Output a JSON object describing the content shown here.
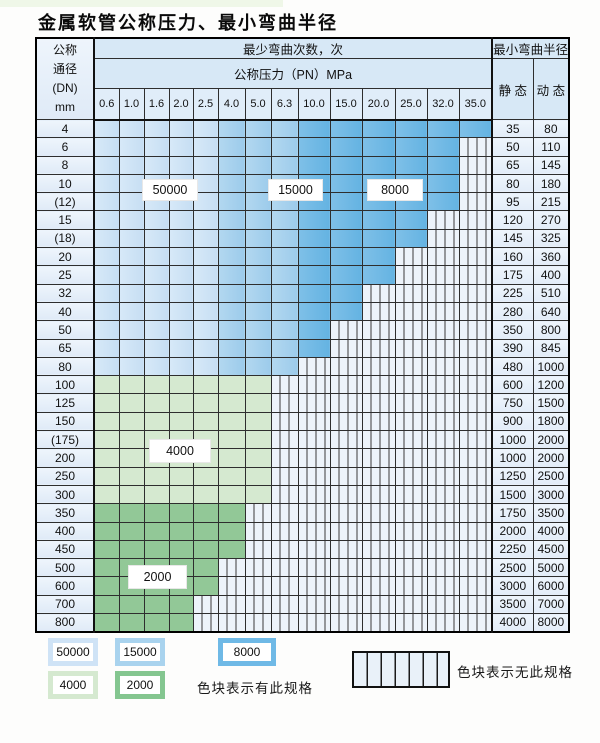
{
  "page": {
    "title": "金属软管公称压力、最小弯曲半径"
  },
  "header": {
    "dn_lines": [
      "公称",
      "通径",
      "(DN)",
      "mm"
    ],
    "cycles_title": "最少弯曲次数，次",
    "pressure_title": "公称压力（PN）MPa",
    "radius_title": "最小弯曲半径",
    "static_label": "静 态",
    "dynamic_label": "动 态",
    "pressures": [
      "0.6",
      "1.0",
      "1.6",
      "2.0",
      "2.5",
      "4.0",
      "5.0",
      "6.3",
      "10.0",
      "15.0",
      "20.0",
      "25.0",
      "32.0",
      "35.0"
    ]
  },
  "cycle_labels": {
    "c50000": "50000",
    "c15000": "15000",
    "c8000": "8000",
    "c4000": "4000",
    "c2000": "2000"
  },
  "legend": {
    "has_spec_note": "色块表示有此规格",
    "no_spec_note": "色块表示无此规格"
  },
  "colors": {
    "c50000": "#cfe3f6",
    "c15000": "#a9d3ee",
    "c8000": "#6fb9e6",
    "c4000": "#d5e9d0",
    "c2000": "#92c897",
    "no_spec_bg": "#edf3fa",
    "header_bg": "#d7e8f6",
    "grid": "#2e2e2e"
  },
  "chart_data": {
    "type": "table",
    "title": "金属软管公称压力、最小弯曲半径",
    "pn_unit": "MPa",
    "radius_columns": [
      "静态",
      "动态"
    ],
    "cycle_zones": [
      {
        "cycles": "50000",
        "from": "0.6",
        "to": "2.5"
      },
      {
        "cycles": "15000",
        "from": "4.0",
        "to": "6.3"
      },
      {
        "cycles": "8000",
        "from": "10.0",
        "to": "35.0"
      }
    ],
    "rows": [
      {
        "dn": "4",
        "cycles_group": "blue",
        "max_pn": "35.0",
        "static": "35",
        "dynamic": "80"
      },
      {
        "dn": "6",
        "cycles_group": "blue",
        "max_pn": "32.0",
        "static": "50",
        "dynamic": "110"
      },
      {
        "dn": "8",
        "cycles_group": "blue",
        "max_pn": "32.0",
        "static": "65",
        "dynamic": "145"
      },
      {
        "dn": "10",
        "cycles_group": "blue",
        "max_pn": "32.0",
        "static": "80",
        "dynamic": "180"
      },
      {
        "dn": "(12)",
        "cycles_group": "blue",
        "max_pn": "32.0",
        "static": "95",
        "dynamic": "215"
      },
      {
        "dn": "15",
        "cycles_group": "blue",
        "max_pn": "25.0",
        "static": "120",
        "dynamic": "270"
      },
      {
        "dn": "(18)",
        "cycles_group": "blue",
        "max_pn": "25.0",
        "static": "145",
        "dynamic": "325"
      },
      {
        "dn": "20",
        "cycles_group": "blue",
        "max_pn": "20.0",
        "static": "160",
        "dynamic": "360"
      },
      {
        "dn": "25",
        "cycles_group": "blue",
        "max_pn": "20.0",
        "static": "175",
        "dynamic": "400"
      },
      {
        "dn": "32",
        "cycles_group": "blue",
        "max_pn": "15.0",
        "static": "225",
        "dynamic": "510"
      },
      {
        "dn": "40",
        "cycles_group": "blue",
        "max_pn": "15.0",
        "static": "280",
        "dynamic": "640"
      },
      {
        "dn": "50",
        "cycles_group": "blue",
        "max_pn": "10.0",
        "static": "350",
        "dynamic": "800"
      },
      {
        "dn": "65",
        "cycles_group": "blue",
        "max_pn": "10.0",
        "static": "390",
        "dynamic": "845"
      },
      {
        "dn": "80",
        "cycles_group": "blue",
        "max_pn": "6.3",
        "static": "480",
        "dynamic": "1000"
      },
      {
        "dn": "100",
        "cycles_group": "4000",
        "max_pn": "5.0",
        "static": "600",
        "dynamic": "1200"
      },
      {
        "dn": "125",
        "cycles_group": "4000",
        "max_pn": "5.0",
        "static": "750",
        "dynamic": "1500"
      },
      {
        "dn": "150",
        "cycles_group": "4000",
        "max_pn": "5.0",
        "static": "900",
        "dynamic": "1800"
      },
      {
        "dn": "(175)",
        "cycles_group": "4000",
        "max_pn": "5.0",
        "static": "1000",
        "dynamic": "2000"
      },
      {
        "dn": "200",
        "cycles_group": "4000",
        "max_pn": "5.0",
        "static": "1000",
        "dynamic": "2000"
      },
      {
        "dn": "250",
        "cycles_group": "4000",
        "max_pn": "5.0",
        "static": "1250",
        "dynamic": "2500"
      },
      {
        "dn": "300",
        "cycles_group": "4000",
        "max_pn": "5.0",
        "static": "1500",
        "dynamic": "3000"
      },
      {
        "dn": "350",
        "cycles_group": "2000",
        "max_pn": "4.0",
        "static": "1750",
        "dynamic": "3500"
      },
      {
        "dn": "400",
        "cycles_group": "2000",
        "max_pn": "4.0",
        "static": "2000",
        "dynamic": "4000"
      },
      {
        "dn": "450",
        "cycles_group": "2000",
        "max_pn": "4.0",
        "static": "2250",
        "dynamic": "4500"
      },
      {
        "dn": "500",
        "cycles_group": "2000",
        "max_pn": "2.5",
        "static": "2500",
        "dynamic": "5000"
      },
      {
        "dn": "600",
        "cycles_group": "2000",
        "max_pn": "2.5",
        "static": "3000",
        "dynamic": "6000"
      },
      {
        "dn": "700",
        "cycles_group": "2000",
        "max_pn": "2.0",
        "static": "3500",
        "dynamic": "7000"
      },
      {
        "dn": "800",
        "cycles_group": "2000",
        "max_pn": "2.0",
        "static": "4000",
        "dynamic": "8000"
      }
    ]
  }
}
